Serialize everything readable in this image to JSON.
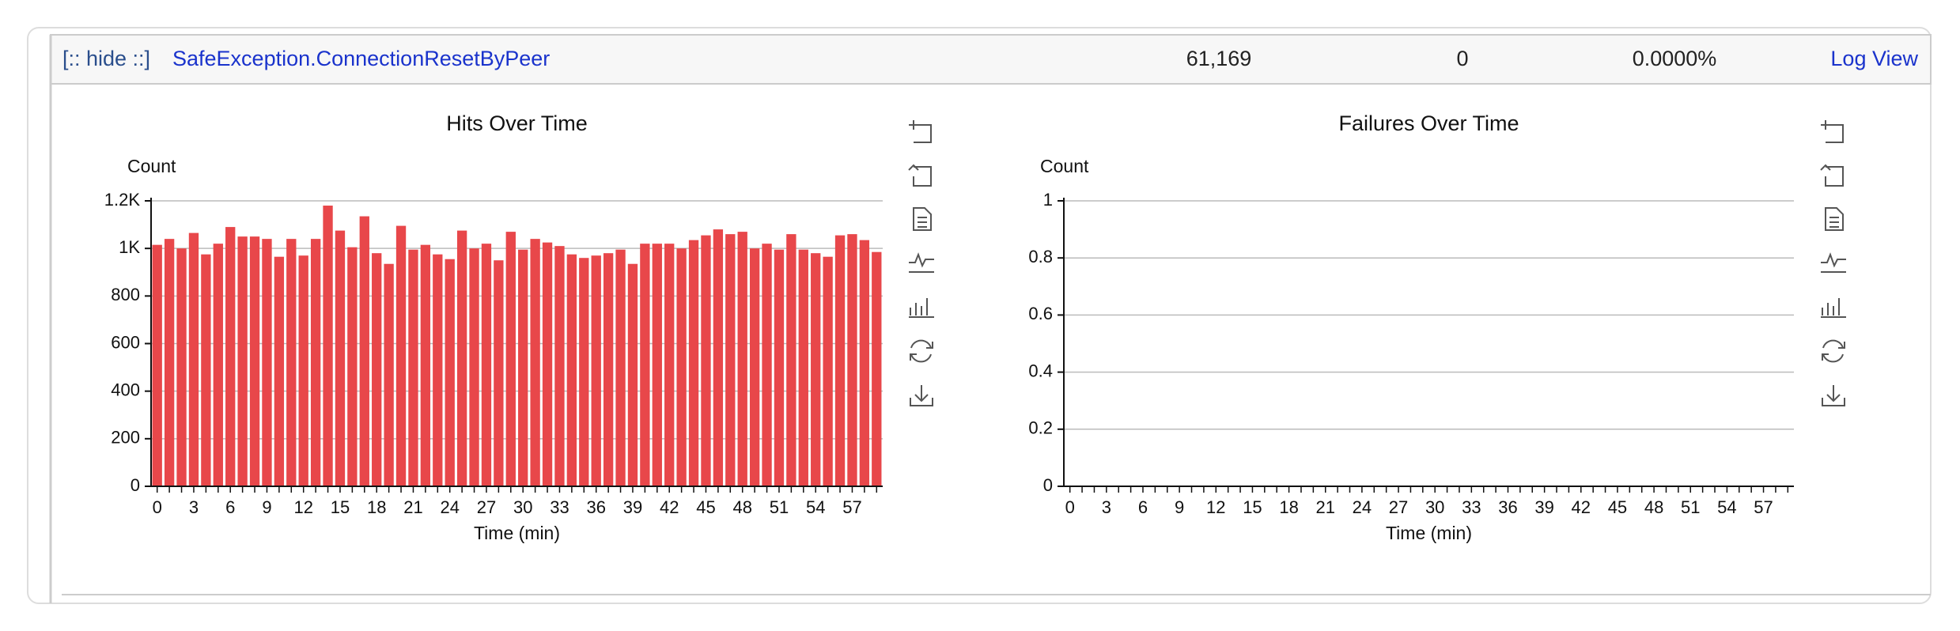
{
  "row": {
    "toggle": "[:: hide ::]",
    "name": "SafeException.ConnectionResetByPeer",
    "hits": "61,169",
    "failures": "0",
    "failure_rate": "0.0000%",
    "link": "Log View"
  },
  "chart_data": [
    {
      "type": "bar",
      "title": "Hits Over Time",
      "y_label": "Count",
      "x_label": "Time (min)",
      "color": "#e8474a",
      "grid": true,
      "categories": [
        "0",
        null,
        null,
        "3",
        null,
        null,
        "6",
        null,
        null,
        "9",
        null,
        null,
        "12",
        null,
        null,
        "15",
        null,
        null,
        "18",
        null,
        null,
        "21",
        null,
        null,
        "24",
        null,
        null,
        "27",
        null,
        null,
        "30",
        null,
        null,
        "33",
        null,
        null,
        "36",
        null,
        null,
        "39",
        null,
        null,
        "42",
        null,
        null,
        "45",
        null,
        null,
        "48",
        null,
        null,
        "51",
        null,
        null,
        "54",
        null,
        null,
        "57",
        null,
        null
      ],
      "values": [
        1015,
        1040,
        1000,
        1065,
        975,
        1020,
        1090,
        1050,
        1050,
        1040,
        965,
        1040,
        970,
        1040,
        1180,
        1075,
        1005,
        1135,
        980,
        935,
        1095,
        995,
        1015,
        975,
        955,
        1075,
        1000,
        1020,
        950,
        1070,
        995,
        1040,
        1025,
        1010,
        975,
        960,
        970,
        980,
        995,
        935,
        1020,
        1020,
        1020,
        1000,
        1035,
        1055,
        1080,
        1060,
        1070,
        1000,
        1020,
        995,
        1060,
        995,
        980,
        965,
        1055,
        1060,
        1035,
        985
      ],
      "ylim": [
        0,
        1200
      ],
      "yticks": [
        0,
        200,
        400,
        600,
        800,
        {
          "value": 1000,
          "label": "1K"
        },
        {
          "value": 1200,
          "label": "1.2K"
        }
      ]
    },
    {
      "type": "bar",
      "title": "Failures Over Time",
      "y_label": "Count",
      "x_label": "Time (min)",
      "color": "#e8474a",
      "grid": true,
      "categories": [
        "0",
        null,
        null,
        "3",
        null,
        null,
        "6",
        null,
        null,
        "9",
        null,
        null,
        "12",
        null,
        null,
        "15",
        null,
        null,
        "18",
        null,
        null,
        "21",
        null,
        null,
        "24",
        null,
        null,
        "27",
        null,
        null,
        "30",
        null,
        null,
        "33",
        null,
        null,
        "36",
        null,
        null,
        "39",
        null,
        null,
        "42",
        null,
        null,
        "45",
        null,
        null,
        "48",
        null,
        null,
        "51",
        null,
        null,
        "54",
        null,
        null,
        "57",
        null,
        null
      ],
      "values": [
        0,
        0,
        0,
        0,
        0,
        0,
        0,
        0,
        0,
        0,
        0,
        0,
        0,
        0,
        0,
        0,
        0,
        0,
        0,
        0,
        0,
        0,
        0,
        0,
        0,
        0,
        0,
        0,
        0,
        0,
        0,
        0,
        0,
        0,
        0,
        0,
        0,
        0,
        0,
        0,
        0,
        0,
        0,
        0,
        0,
        0,
        0,
        0,
        0,
        0,
        0,
        0,
        0,
        0,
        0,
        0,
        0,
        0,
        0,
        0
      ],
      "ylim": [
        0,
        1
      ],
      "yticks": [
        0,
        0.2,
        0.4,
        0.6,
        0.8,
        1
      ]
    }
  ]
}
